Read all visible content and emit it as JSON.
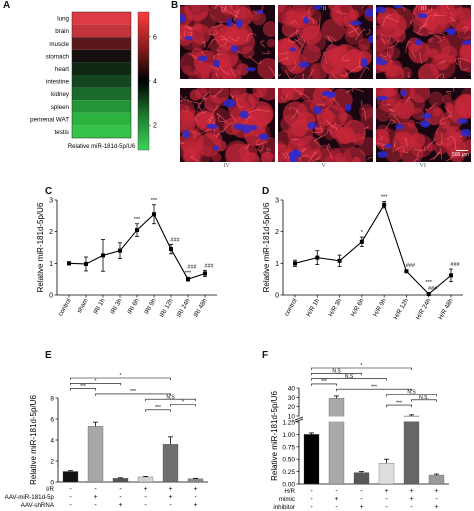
{
  "panels": {
    "A": "A",
    "B": "B",
    "C": "C",
    "D": "D",
    "E": "E",
    "F": "F"
  },
  "chart_data": [
    {
      "panel": "A",
      "type": "heatmap",
      "categories": [
        "lung",
        "brain",
        "muscle",
        "stomach",
        "heart",
        "intestine",
        "kidney",
        "spleen",
        "perirenal WAT",
        "testis"
      ],
      "values": [
        6.9,
        6.6,
        5.6,
        4.3,
        3.3,
        2.8,
        2.4,
        1.9,
        1.6,
        1.3
      ],
      "colors": [
        "#dd3b43",
        "#c0343a",
        "#5a181c",
        "#141010",
        "#0e2a14",
        "#14471f",
        "#1a6a2c",
        "#239437",
        "#2bb33f",
        "#36c34a"
      ],
      "xlabel": "Relative miR-181d-5p/U6",
      "scale_ticks": [
        "6",
        "4",
        "2"
      ],
      "colormap": [
        "#ff3b3b",
        "#8b1f1f",
        "#000000",
        "#1f7a2f",
        "#3fd35a"
      ]
    },
    {
      "panel": "C",
      "type": "line",
      "categories": [
        "control",
        "sham",
        "IRI 1h",
        "IRI 3h",
        "IRI 6h",
        "IRI 9h",
        "IRI 12h",
        "IRI 24h",
        "IRI 48h"
      ],
      "values": [
        1.0,
        0.98,
        1.25,
        1.4,
        2.05,
        2.55,
        1.45,
        0.5,
        0.68
      ],
      "errors": [
        0.05,
        0.22,
        0.5,
        0.25,
        0.2,
        0.3,
        0.15,
        0.06,
        0.1
      ],
      "markers": [
        "",
        "",
        "",
        "",
        "***",
        "***",
        "###",
        "***\n###",
        "###"
      ],
      "ylabel": "Relative miR-181d-5p/U6",
      "ylim": [
        0,
        3
      ],
      "yticks": [
        "0",
        "1",
        "2",
        "3"
      ]
    },
    {
      "panel": "D",
      "type": "line",
      "categories": [
        "control",
        "H/R 1h",
        "H/R 3h",
        "H/R 6h",
        "H/R 9h",
        "H/R 12h",
        "H/R 24h",
        "H/R 48h"
      ],
      "values": [
        1.0,
        1.18,
        1.08,
        1.68,
        2.85,
        0.75,
        0.03,
        0.62
      ],
      "errors": [
        0.1,
        0.22,
        0.18,
        0.15,
        0.1,
        0.04,
        0.03,
        0.2
      ],
      "markers": [
        "",
        "",
        "",
        "*",
        "***",
        "###",
        "###\n***",
        "###"
      ],
      "ylabel": "Relative miR-181d-5p/U6",
      "ylim": [
        0,
        3
      ],
      "yticks": [
        "0",
        "1",
        "2",
        "3"
      ]
    },
    {
      "panel": "E",
      "type": "bar",
      "values": [
        1.0,
        5.3,
        0.35,
        0.48,
        3.6,
        0.3
      ],
      "errors": [
        0.08,
        0.4,
        0.05,
        0.05,
        0.7,
        0.05
      ],
      "colors": [
        "#111111",
        "#a7a7a7",
        "#555555",
        "#d2d2d2",
        "#6f6f6f",
        "#8a8a8a"
      ],
      "ylabel": "Relative miR-181d-5p/U6",
      "ylim": [
        0,
        8
      ],
      "yticks": [
        "0",
        "2",
        "4",
        "6",
        "8"
      ],
      "conditions": [
        {
          "label": "I/R",
          "signs": [
            "-",
            "-",
            "-",
            "+",
            "+",
            "+"
          ]
        },
        {
          "label": "AAV-miR-181d-5p",
          "signs": [
            "-",
            "+",
            "-",
            "-",
            "+",
            "-"
          ]
        },
        {
          "label": "AAV-shRNA",
          "signs": [
            "-",
            "-",
            "+",
            "-",
            "-",
            "+"
          ]
        }
      ],
      "brackets": [
        {
          "from": 0,
          "to": 4,
          "label": "*"
        },
        {
          "from": 0,
          "to": 2,
          "label": "*"
        },
        {
          "from": 0,
          "to": 1,
          "label": "***"
        },
        {
          "from": 1,
          "to": 4,
          "label": "***"
        },
        {
          "from": 3,
          "to": 5,
          "label": "N.S"
        },
        {
          "from": 4,
          "to": 5,
          "label": "*"
        },
        {
          "from": 3,
          "to": 4,
          "label": "***"
        }
      ]
    },
    {
      "panel": "F",
      "type": "bar",
      "values": [
        1.0,
        29.0,
        0.23,
        0.42,
        10.0,
        0.18
      ],
      "errors": [
        0.03,
        2.5,
        0.02,
        0.08,
        1.2,
        0.02
      ],
      "colors": [
        "#000000",
        "#a9a9a9",
        "#585858",
        "#dedede",
        "#666666",
        "#9a9a9a"
      ],
      "ylabel": "Relative miR-181d-5p/U6",
      "yticks": [
        "0.00",
        "0.25",
        "0.50",
        "0.75",
        "1.00",
        "1.25",
        "10",
        "20",
        "30",
        "40"
      ],
      "broken_axis": true,
      "conditions": [
        {
          "label": "H/R",
          "signs": [
            "-",
            "-",
            "-",
            "+",
            "+",
            "+"
          ]
        },
        {
          "label": "mimic",
          "signs": [
            "-",
            "+",
            "-",
            "-",
            "+",
            "-"
          ]
        },
        {
          "label": "inhibitor",
          "signs": [
            "-",
            "-",
            "+",
            "-",
            "-",
            "+"
          ]
        }
      ],
      "brackets": [
        {
          "from": 0,
          "to": 4,
          "label": "*"
        },
        {
          "from": 0,
          "to": 2,
          "label": "N.S"
        },
        {
          "from": 0,
          "to": 3,
          "label": "N.S"
        },
        {
          "from": 0,
          "to": 1,
          "label": "***"
        },
        {
          "from": 1,
          "to": 4,
          "label": "***"
        },
        {
          "from": 3,
          "to": 5,
          "label": "N.S"
        },
        {
          "from": 4,
          "to": 5,
          "label": "N.S."
        },
        {
          "from": 3,
          "to": 4,
          "label": "***"
        }
      ]
    }
  ],
  "micrographs": {
    "labels": [
      "I",
      "II",
      "III",
      "IV",
      "V",
      "VI"
    ],
    "scale_bar": "500 μm",
    "colors": {
      "red": "#c8283a",
      "blue": "#2a2ad0",
      "background": "#1a0610"
    }
  }
}
